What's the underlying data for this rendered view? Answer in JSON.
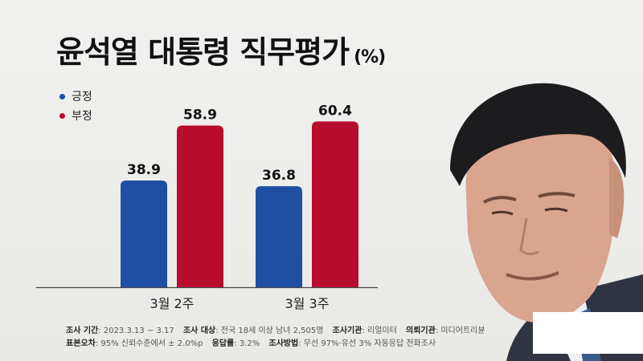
{
  "title": "윤석열 대통령 직무평가",
  "title_unit": "(%)",
  "colors": {
    "positive": "#1f4fa3",
    "negative": "#b80c2c"
  },
  "chart_data": {
    "type": "bar",
    "categories": [
      "3월 2주",
      "3월 3주"
    ],
    "series": [
      {
        "name": "긍정",
        "values": [
          38.9,
          36.8
        ],
        "color": "#1f4fa3"
      },
      {
        "name": "부정",
        "values": [
          58.9,
          60.4
        ],
        "color": "#b80c2c"
      }
    ],
    "ylim": [
      0,
      70
    ],
    "grid": false,
    "legend_position": "top-left"
  },
  "footer": {
    "line1": [
      {
        "label": "조사 기간",
        "value": ": 2023.3.13 ~ 3.17"
      },
      {
        "label": "조사 대상",
        "value": ": 전국 18세 이상 남녀 2,505명"
      },
      {
        "label": "조사기관",
        "value": ": 리얼미터"
      },
      {
        "label": "의뢰기관",
        "value": ": 미디어트리뷴"
      }
    ],
    "line2": [
      {
        "label": "표본오차",
        "value": ": 95% 신뢰수준에서 ± 2.0%p"
      },
      {
        "label": "응답률",
        "value": ": 3.2%"
      },
      {
        "label": "조사방법",
        "value": ": 무선 97%·유선 3% 자동응답 전화조사"
      }
    ]
  }
}
